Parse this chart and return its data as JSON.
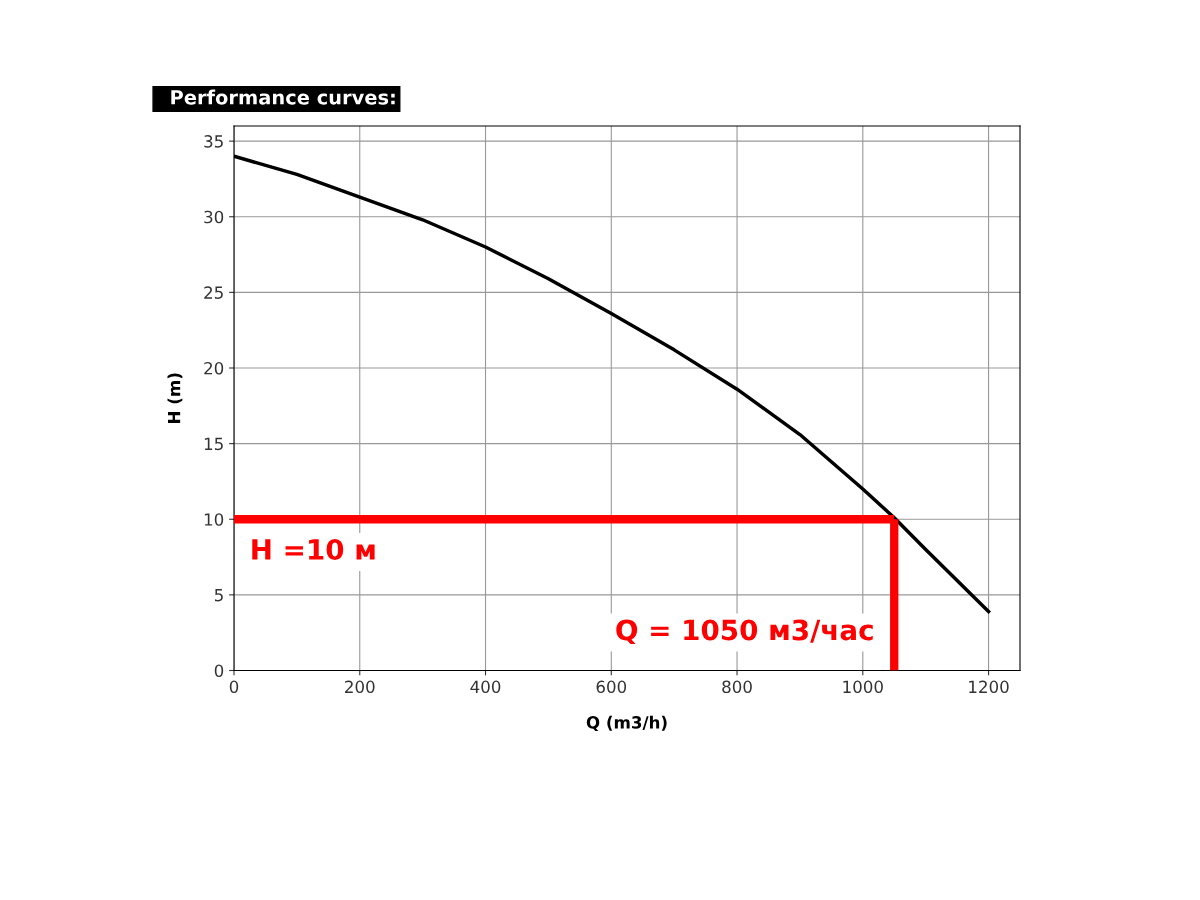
{
  "chart_data": {
    "type": "line",
    "title": "Performance curves:",
    "xlabel": "Q (m3/h)",
    "ylabel": "H (m)",
    "x": [
      0,
      100,
      200,
      300,
      400,
      500,
      600,
      700,
      800,
      900,
      1000,
      1050,
      1100,
      1200
    ],
    "series": [
      {
        "color": "#000000",
        "values": [
          34,
          32.8,
          31.3,
          29.8,
          28.0,
          25.9,
          23.6,
          21.2,
          18.6,
          15.6,
          12.0,
          10.1,
          8.0,
          3.9
        ]
      }
    ],
    "xlim": [
      0,
      1250
    ],
    "ylim": [
      0,
      36
    ],
    "xticks": [
      0,
      200,
      400,
      600,
      800,
      1000,
      1200
    ],
    "yticks": [
      0,
      5,
      10,
      15,
      20,
      25,
      30,
      35
    ],
    "ref_lines": [
      {
        "axis": "y",
        "value": 10,
        "label": "H =10 м",
        "color": "#ff0000"
      },
      {
        "axis": "x",
        "value": 1050,
        "label": "Q = 1050 м3/час",
        "color": "#ff0000"
      }
    ],
    "grid": true,
    "marker": "none",
    "line_style": "solid"
  }
}
